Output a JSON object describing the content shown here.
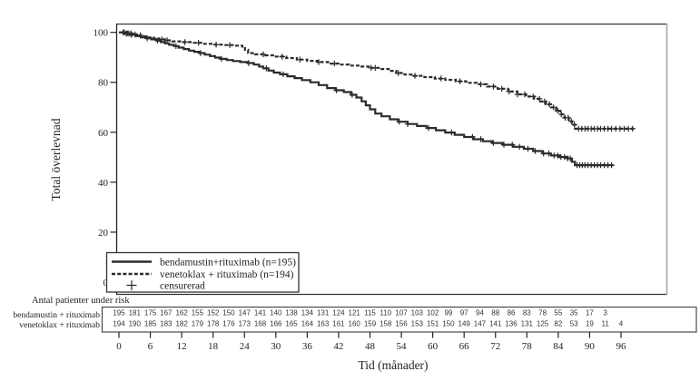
{
  "colors": {
    "ink": "#222222",
    "curve": "#2b2b2b",
    "right_border": "#b0b0b0",
    "table_border": "#4a4a4a",
    "background": "#ffffff"
  },
  "chart_data": {
    "type": "line",
    "variant": "kaplan_meier_step",
    "title": "",
    "ylabel": "Total överlevnad",
    "xlabel": "Tid (månader)",
    "ylim": [
      0,
      100
    ],
    "xlim": [
      0,
      105
    ],
    "y_ticks": [
      0,
      20,
      40,
      60,
      80,
      100
    ],
    "x_ticks": [
      0,
      6,
      12,
      18,
      24,
      30,
      36,
      42,
      48,
      54,
      60,
      66,
      72,
      78,
      84,
      90,
      96
    ],
    "grid": false,
    "legend": {
      "position": "bottom-left-inside",
      "items": [
        {
          "label": "bendamustin+rituximab (n=195)",
          "marker": "solid-line"
        },
        {
          "label": "venetoklax + rituximab (n=194)",
          "marker": "dashed-line"
        },
        {
          "label": "censurerad",
          "marker": "plus"
        }
      ]
    },
    "series": [
      {
        "name": "bendamustin+rituximab (n=195)",
        "style": "solid",
        "points": [
          [
            0,
            100
          ],
          [
            1.3,
            99.5
          ],
          [
            2.2,
            99
          ],
          [
            3.2,
            98.5
          ],
          [
            4.2,
            98
          ],
          [
            5.2,
            97.6
          ],
          [
            6.2,
            97.2
          ],
          [
            7.2,
            96.7
          ],
          [
            8,
            96.1
          ],
          [
            8.8,
            95.6
          ],
          [
            9.6,
            95
          ],
          [
            10.5,
            94.5
          ],
          [
            11.4,
            93.9
          ],
          [
            12.4,
            93.3
          ],
          [
            13.4,
            92.7
          ],
          [
            14.4,
            92.2
          ],
          [
            15.4,
            91.7
          ],
          [
            16.4,
            91.1
          ],
          [
            17.4,
            90.5
          ],
          [
            18.4,
            89.9
          ],
          [
            19.4,
            89.4
          ],
          [
            20.6,
            88.9
          ],
          [
            21.8,
            88.5
          ],
          [
            23.2,
            88.1
          ],
          [
            24.6,
            87.7
          ],
          [
            25.8,
            87.1
          ],
          [
            26.8,
            86.3
          ],
          [
            27.6,
            85.6
          ],
          [
            28.6,
            84.7
          ],
          [
            29.6,
            83.9
          ],
          [
            30.8,
            83.2
          ],
          [
            32.2,
            82.4
          ],
          [
            33.6,
            81.7
          ],
          [
            35,
            80.9
          ],
          [
            36.6,
            80
          ],
          [
            38.2,
            78.9
          ],
          [
            39.8,
            77.7
          ],
          [
            41.4,
            76.8
          ],
          [
            43,
            76.1
          ],
          [
            44.4,
            75
          ],
          [
            45.4,
            73.9
          ],
          [
            46.4,
            72.4
          ],
          [
            47.2,
            70.8
          ],
          [
            48,
            69.2
          ],
          [
            49,
            67.5
          ],
          [
            50.2,
            66.4
          ],
          [
            51.8,
            65.2
          ],
          [
            53.4,
            64.2
          ],
          [
            55.2,
            63.3
          ],
          [
            57,
            62.5
          ],
          [
            58.8,
            61.7
          ],
          [
            60.6,
            60.8
          ],
          [
            62.4,
            59.9
          ],
          [
            64.2,
            59
          ],
          [
            66,
            58.1
          ],
          [
            67.8,
            57.2
          ],
          [
            69.6,
            56.4
          ],
          [
            71.4,
            55.7
          ],
          [
            73.4,
            55
          ],
          [
            75.4,
            54.2
          ],
          [
            77.4,
            53.4
          ],
          [
            79.2,
            52.5
          ],
          [
            81,
            51.5
          ],
          [
            82.6,
            50.7
          ],
          [
            84.2,
            50.1
          ],
          [
            85.8,
            49.5
          ],
          [
            86.6,
            48.2
          ],
          [
            87.2,
            46.8
          ],
          [
            94.5,
            46.8
          ]
        ],
        "censor_times": [
          0.8,
          1.4,
          1.9,
          2.4,
          5.4,
          7.4,
          10.9,
          15.6,
          19.6,
          24.8,
          28.2,
          31.4,
          41.6,
          44.6,
          53.6,
          55.2,
          59.2,
          63.6,
          67.6,
          69.2,
          71.6,
          73.6,
          75.2,
          76.6,
          78.2,
          79.6,
          81.2,
          82.2,
          83.2,
          83.9,
          84.5,
          85.2,
          85.8,
          86.3,
          87.6,
          88.1,
          88.6,
          89.1,
          89.7,
          90.3,
          90.9,
          91.5,
          92.1,
          92.8,
          93.5,
          94.2
        ]
      },
      {
        "name": "venetoklax + rituximab (n=194)",
        "style": "dashed",
        "points": [
          [
            0,
            100
          ],
          [
            1.6,
            99.6
          ],
          [
            2.6,
            99.2
          ],
          [
            3.6,
            98.8
          ],
          [
            4.6,
            98.4
          ],
          [
            5.6,
            98
          ],
          [
            6.6,
            97.6
          ],
          [
            7.6,
            97.2
          ],
          [
            8.8,
            96.8
          ],
          [
            10.2,
            96.4
          ],
          [
            12,
            96.1
          ],
          [
            14,
            95.8
          ],
          [
            16,
            95.4
          ],
          [
            18,
            95.1
          ],
          [
            20,
            94.9
          ],
          [
            22,
            94.7
          ],
          [
            23.6,
            94.3
          ],
          [
            24.1,
            93
          ],
          [
            24.7,
            91.7
          ],
          [
            26,
            91.2
          ],
          [
            28,
            90.8
          ],
          [
            30,
            90.3
          ],
          [
            32,
            89.7
          ],
          [
            34,
            89.1
          ],
          [
            36,
            88.6
          ],
          [
            38,
            88.1
          ],
          [
            40,
            87.5
          ],
          [
            42,
            87.1
          ],
          [
            44,
            86.7
          ],
          [
            46,
            86.3
          ],
          [
            48,
            85.8
          ],
          [
            50,
            85.3
          ],
          [
            51.6,
            84.6
          ],
          [
            53,
            83.7
          ],
          [
            54.6,
            83.1
          ],
          [
            56.4,
            82.6
          ],
          [
            58.4,
            82.1
          ],
          [
            60.4,
            81.5
          ],
          [
            62.4,
            81
          ],
          [
            64.4,
            80.4
          ],
          [
            66.4,
            79.8
          ],
          [
            68.4,
            79.2
          ],
          [
            70.4,
            78.3
          ],
          [
            72.4,
            77.4
          ],
          [
            74.4,
            76.3
          ],
          [
            76.2,
            75.2
          ],
          [
            77.8,
            74.3
          ],
          [
            79.4,
            73.4
          ],
          [
            80.6,
            72.3
          ],
          [
            81.6,
            71.2
          ],
          [
            82.6,
            70
          ],
          [
            83.6,
            68.6
          ],
          [
            84.4,
            67.2
          ],
          [
            85.2,
            65.8
          ],
          [
            86,
            64.4
          ],
          [
            86.6,
            63
          ],
          [
            87.2,
            61.4
          ],
          [
            98.4,
            61.4
          ]
        ],
        "censor_times": [
          1,
          1.6,
          2.3,
          3.1,
          4.1,
          8.2,
          9.2,
          12.6,
          15.2,
          18.6,
          21.2,
          27.6,
          31.2,
          34.6,
          38.2,
          41.2,
          48.2,
          49,
          53.4,
          56.6,
          61.6,
          65.2,
          69.2,
          71.6,
          73.2,
          74.6,
          76.2,
          77.6,
          79.2,
          80.4,
          81.4,
          82.3,
          83.1,
          83.9,
          84.6,
          85.3,
          85.9,
          86.5,
          87.1,
          87.9,
          88.5,
          89.1,
          89.7,
          90.3,
          90.9,
          91.5,
          92.1,
          92.8,
          93.5,
          94.2,
          95,
          95.8,
          96.6,
          97.4,
          98.2
        ]
      }
    ]
  },
  "risk_table": {
    "title": "Antal patienter under risk",
    "interval_months": 3,
    "rows": [
      {
        "label": "bendamustin + rituximab",
        "counts": [
          195,
          181,
          175,
          167,
          162,
          155,
          152,
          150,
          147,
          141,
          140,
          138,
          134,
          131,
          124,
          121,
          115,
          110,
          107,
          103,
          102,
          99,
          97,
          94,
          88,
          86,
          83,
          78,
          55,
          35,
          17,
          3
        ]
      },
      {
        "label": "venetoklax + rituximab",
        "counts": [
          194,
          190,
          185,
          183,
          182,
          179,
          178,
          176,
          173,
          168,
          166,
          165,
          164,
          163,
          161,
          160,
          159,
          158,
          156,
          153,
          151,
          150,
          149,
          147,
          141,
          136,
          131,
          125,
          82,
          53,
          19,
          11,
          4
        ]
      }
    ]
  }
}
